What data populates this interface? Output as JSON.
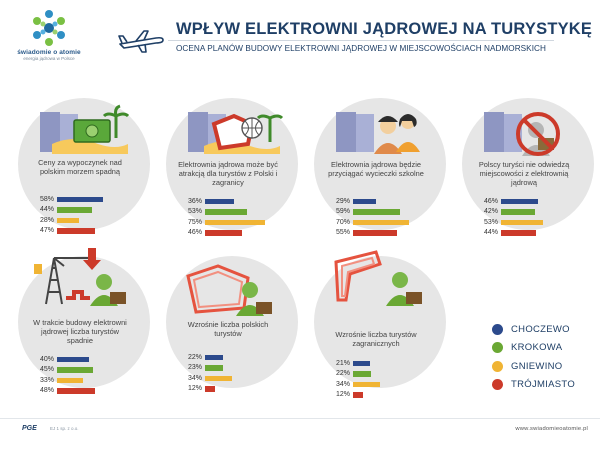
{
  "header": {
    "brand": "świadomie o atomie",
    "tagline": "energia jądrowa w Polsce",
    "title": "WPŁYW ELEKTROWNI JĄDROWEJ NA TURYSTYKĘ",
    "subtitle": "OCENA PLANÓW BUDOWY ELEKTROWNI JĄDROWEJ W MIEJSCOWOŚCIACH NADMORSKICH"
  },
  "colors": {
    "CHOCZEWO": "#2c4a8c",
    "KROKOWA": "#6aa834",
    "GNIEWINO": "#f0b434",
    "TRÓJMIASTO": "#cc3a2a"
  },
  "chart_data": {
    "type": "bar",
    "series_names": [
      "CHOCZEWO",
      "KROKOWA",
      "GNIEWINO",
      "TRÓJMIASTO"
    ],
    "panels": [
      {
        "label": "Ceny za wypoczynek nad polskim morzem spadną",
        "labels": [
          "58%",
          "44%",
          "28%",
          "47%"
        ],
        "values": [
          58,
          44,
          28,
          47
        ]
      },
      {
        "label": "Elektrownia jądrowa może być atrakcją dla turystów z Polski i zagranicy",
        "labels": [
          "36%",
          "53%",
          "75%",
          "46%"
        ],
        "values": [
          36,
          53,
          75,
          46
        ]
      },
      {
        "label": "Elektrownia jądrowa będzie przyciągać wycieczki szkolne",
        "labels": [
          "29%",
          "59%",
          "70%",
          "55%"
        ],
        "values": [
          29,
          59,
          70,
          55
        ]
      },
      {
        "label": "Polscy turyści nie odwiedzą miejscowości z elektrownią jądrową",
        "labels": [
          "46%",
          "42%",
          "53%",
          "44%"
        ],
        "values": [
          46,
          42,
          53,
          44
        ]
      },
      {
        "label": "W trakcie budowy elektrowni jądrowej liczba turystów spadnie",
        "labels": [
          "40%",
          "45%",
          "33%",
          "48%"
        ],
        "values": [
          40,
          45,
          33,
          48
        ]
      },
      {
        "label": "Wzrośnie liczba polskich turystów",
        "labels": [
          "22%",
          "23%",
          "34%",
          "12%"
        ],
        "values": [
          22,
          23,
          34,
          12
        ]
      },
      {
        "label": "Wzrośnie liczba turystów zagranicznych",
        "labels": [
          "21%",
          "22%",
          "34%",
          "12%"
        ],
        "values": [
          21,
          22,
          34,
          12
        ]
      }
    ],
    "legend_position": "bottom-right"
  },
  "footer": {
    "pge": "PGE",
    "pge_sub": "EJ 1 sp. z o.o.",
    "url": "www.swiadomieoatomie.pl"
  }
}
